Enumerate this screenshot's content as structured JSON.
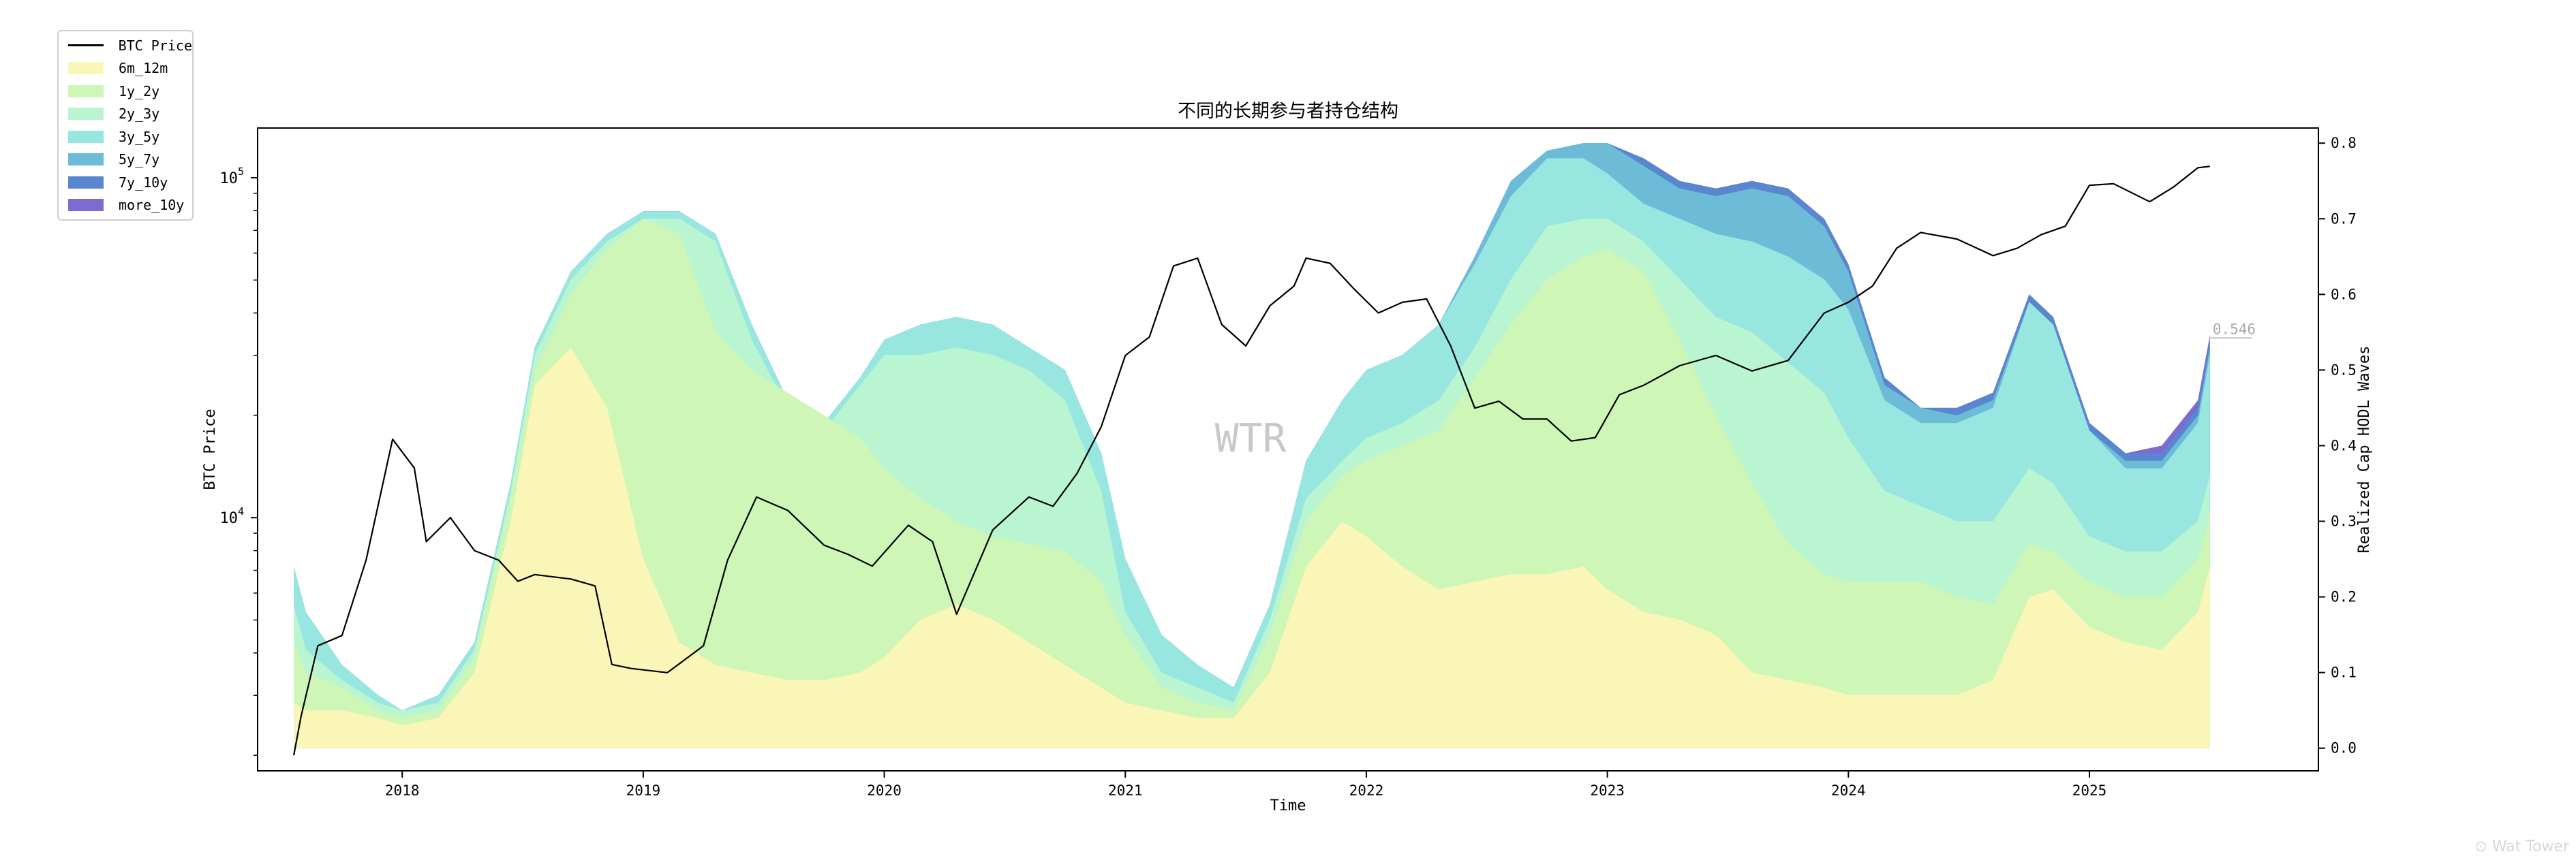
{
  "chart_data": {
    "type": "area",
    "title": "不同的长期参与者持仓结构",
    "xlabel": "Time",
    "ylabel_left": "BTC Price",
    "ylabel_right": "Realized Cap HODL Waves",
    "x_ticks": [
      "2018",
      "2019",
      "2020",
      "2021",
      "2022",
      "2023",
      "2024",
      "2025"
    ],
    "x_range": [
      2017.4,
      2025.95
    ],
    "y_left_scale": "log",
    "y_left_range": [
      1800,
      140000
    ],
    "y_left_ticks": [
      {
        "value": 10000,
        "base": "10",
        "exp": "4"
      },
      {
        "value": 100000,
        "base": "10",
        "exp": "5"
      }
    ],
    "y_right_range": [
      -0.03,
      0.82
    ],
    "y_right_ticks": [
      "0.0",
      "0.1",
      "0.2",
      "0.3",
      "0.4",
      "0.5",
      "0.6",
      "0.7",
      "0.8"
    ],
    "last_value_label": "0.546",
    "watermark": "WTR",
    "legend_position": "upper-left (outside plot)",
    "grid": false,
    "colors": {
      "price": "#000000",
      "6m_12m": "#faf6b8",
      "1y_2y": "#cdf6b7",
      "2y_3y": "#baf5d2",
      "3y_5y": "#98e6e0",
      "5y_7y": "#6cbcd8",
      "7y_10y": "#5a86cf",
      "more_10y": "#7d6bcf"
    },
    "x": [
      2017.55,
      2017.6,
      2017.75,
      2017.9,
      2018.0,
      2018.15,
      2018.3,
      2018.45,
      2018.55,
      2018.7,
      2018.85,
      2019.0,
      2019.15,
      2019.3,
      2019.45,
      2019.6,
      2019.75,
      2019.9,
      2020.0,
      2020.15,
      2020.3,
      2020.45,
      2020.6,
      2020.75,
      2020.9,
      2021.0,
      2021.15,
      2021.3,
      2021.45,
      2021.6,
      2021.75,
      2021.9,
      2022.0,
      2022.15,
      2022.3,
      2022.45,
      2022.6,
      2022.75,
      2022.9,
      2023.0,
      2023.15,
      2023.3,
      2023.45,
      2023.6,
      2023.75,
      2023.9,
      2024.0,
      2024.15,
      2024.3,
      2024.45,
      2024.6,
      2024.75,
      2024.85,
      2025.0,
      2025.15,
      2025.3,
      2025.45,
      2025.5
    ],
    "series": [
      {
        "name": "6m_12m",
        "values": [
          0.06,
          0.05,
          0.05,
          0.04,
          0.03,
          0.04,
          0.1,
          0.3,
          0.48,
          0.53,
          0.45,
          0.25,
          0.14,
          0.11,
          0.1,
          0.09,
          0.09,
          0.1,
          0.12,
          0.17,
          0.19,
          0.17,
          0.14,
          0.11,
          0.08,
          0.06,
          0.05,
          0.04,
          0.04,
          0.1,
          0.24,
          0.3,
          0.28,
          0.24,
          0.21,
          0.22,
          0.23,
          0.23,
          0.24,
          0.21,
          0.18,
          0.17,
          0.15,
          0.1,
          0.09,
          0.08,
          0.07,
          0.07,
          0.07,
          0.07,
          0.09,
          0.2,
          0.21,
          0.16,
          0.14,
          0.13,
          0.18,
          0.24
        ]
      },
      {
        "name": "1y_2y",
        "values": [
          0.14,
          0.1,
          0.08,
          0.05,
          0.04,
          0.05,
          0.12,
          0.33,
          0.5,
          0.6,
          0.66,
          0.7,
          0.68,
          0.55,
          0.5,
          0.47,
          0.44,
          0.41,
          0.37,
          0.33,
          0.3,
          0.28,
          0.27,
          0.26,
          0.22,
          0.15,
          0.08,
          0.06,
          0.05,
          0.15,
          0.3,
          0.36,
          0.38,
          0.4,
          0.42,
          0.49,
          0.56,
          0.62,
          0.65,
          0.66,
          0.63,
          0.54,
          0.44,
          0.35,
          0.27,
          0.23,
          0.22,
          0.22,
          0.22,
          0.2,
          0.19,
          0.27,
          0.26,
          0.22,
          0.2,
          0.2,
          0.25,
          0.31
        ]
      },
      {
        "name": "2y_3y",
        "values": [
          0.19,
          0.13,
          0.09,
          0.06,
          0.05,
          0.06,
          0.13,
          0.34,
          0.52,
          0.62,
          0.67,
          0.7,
          0.7,
          0.67,
          0.54,
          0.45,
          0.42,
          0.48,
          0.52,
          0.52,
          0.53,
          0.52,
          0.5,
          0.46,
          0.34,
          0.18,
          0.1,
          0.08,
          0.06,
          0.17,
          0.33,
          0.38,
          0.41,
          0.43,
          0.46,
          0.53,
          0.62,
          0.69,
          0.7,
          0.7,
          0.67,
          0.62,
          0.57,
          0.55,
          0.51,
          0.47,
          0.41,
          0.34,
          0.32,
          0.3,
          0.3,
          0.37,
          0.35,
          0.28,
          0.26,
          0.26,
          0.3,
          0.36
        ]
      },
      {
        "name": "3y_5y",
        "values": [
          0.24,
          0.18,
          0.11,
          0.07,
          0.05,
          0.07,
          0.14,
          0.35,
          0.53,
          0.63,
          0.68,
          0.71,
          0.71,
          0.68,
          0.56,
          0.46,
          0.43,
          0.49,
          0.54,
          0.56,
          0.57,
          0.56,
          0.53,
          0.5,
          0.39,
          0.25,
          0.15,
          0.11,
          0.08,
          0.19,
          0.38,
          0.46,
          0.5,
          0.52,
          0.56,
          0.64,
          0.73,
          0.78,
          0.78,
          0.76,
          0.72,
          0.7,
          0.68,
          0.67,
          0.65,
          0.62,
          0.58,
          0.46,
          0.43,
          0.43,
          0.45,
          0.59,
          0.56,
          0.42,
          0.37,
          0.37,
          0.43,
          0.52
        ]
      },
      {
        "name": "5y_7y",
        "values": [
          0.24,
          0.18,
          0.11,
          0.07,
          0.05,
          0.07,
          0.14,
          0.35,
          0.53,
          0.63,
          0.68,
          0.71,
          0.71,
          0.68,
          0.56,
          0.46,
          0.43,
          0.49,
          0.54,
          0.56,
          0.57,
          0.56,
          0.53,
          0.5,
          0.39,
          0.25,
          0.15,
          0.11,
          0.08,
          0.19,
          0.38,
          0.46,
          0.5,
          0.52,
          0.56,
          0.65,
          0.75,
          0.79,
          0.8,
          0.8,
          0.77,
          0.74,
          0.73,
          0.74,
          0.73,
          0.69,
          0.63,
          0.48,
          0.45,
          0.44,
          0.46,
          0.59,
          0.56,
          0.42,
          0.38,
          0.38,
          0.44,
          0.53
        ]
      },
      {
        "name": "7y_10y",
        "values": [
          0.24,
          0.18,
          0.11,
          0.07,
          0.05,
          0.07,
          0.14,
          0.35,
          0.53,
          0.63,
          0.68,
          0.71,
          0.71,
          0.68,
          0.56,
          0.46,
          0.43,
          0.49,
          0.54,
          0.56,
          0.57,
          0.56,
          0.53,
          0.5,
          0.39,
          0.25,
          0.15,
          0.11,
          0.08,
          0.19,
          0.38,
          0.46,
          0.5,
          0.52,
          0.56,
          0.65,
          0.75,
          0.79,
          0.8,
          0.8,
          0.78,
          0.75,
          0.74,
          0.75,
          0.74,
          0.7,
          0.64,
          0.49,
          0.45,
          0.45,
          0.47,
          0.6,
          0.57,
          0.43,
          0.39,
          0.39,
          0.45,
          0.54
        ]
      },
      {
        "name": "more_10y",
        "values": [
          0.24,
          0.18,
          0.11,
          0.07,
          0.05,
          0.07,
          0.14,
          0.35,
          0.53,
          0.63,
          0.68,
          0.71,
          0.71,
          0.68,
          0.56,
          0.46,
          0.43,
          0.49,
          0.54,
          0.56,
          0.57,
          0.56,
          0.53,
          0.5,
          0.39,
          0.25,
          0.15,
          0.11,
          0.08,
          0.19,
          0.38,
          0.46,
          0.5,
          0.52,
          0.56,
          0.65,
          0.75,
          0.79,
          0.8,
          0.8,
          0.78,
          0.75,
          0.74,
          0.75,
          0.74,
          0.7,
          0.64,
          0.49,
          0.45,
          0.45,
          0.47,
          0.6,
          0.57,
          0.43,
          0.39,
          0.4,
          0.46,
          0.546
        ]
      }
    ],
    "price": {
      "name": "BTC Price",
      "x": [
        2017.55,
        2017.58,
        2017.65,
        2017.75,
        2017.85,
        2017.96,
        2018.05,
        2018.1,
        2018.2,
        2018.3,
        2018.4,
        2018.48,
        2018.55,
        2018.7,
        2018.8,
        2018.87,
        2018.95,
        2019.1,
        2019.25,
        2019.35,
        2019.47,
        2019.6,
        2019.75,
        2019.85,
        2019.95,
        2020.1,
        2020.2,
        2020.3,
        2020.45,
        2020.6,
        2020.7,
        2020.8,
        2020.9,
        2021.0,
        2021.1,
        2021.2,
        2021.3,
        2021.4,
        2021.5,
        2021.6,
        2021.7,
        2021.75,
        2021.85,
        2021.95,
        2022.05,
        2022.15,
        2022.25,
        2022.35,
        2022.45,
        2022.55,
        2022.65,
        2022.75,
        2022.85,
        2022.95,
        2023.05,
        2023.15,
        2023.3,
        2023.45,
        2023.6,
        2023.75,
        2023.9,
        2024.0,
        2024.1,
        2024.2,
        2024.3,
        2024.45,
        2024.6,
        2024.7,
        2024.8,
        2024.9,
        2025.0,
        2025.1,
        2025.25,
        2025.35,
        2025.45,
        2025.5
      ],
      "values": [
        2000,
        2600,
        4200,
        4500,
        7500,
        17000,
        14000,
        8500,
        10000,
        8000,
        7500,
        6500,
        6800,
        6600,
        6300,
        3700,
        3600,
        3500,
        4200,
        7500,
        11500,
        10500,
        8300,
        7800,
        7200,
        9500,
        8500,
        5200,
        9200,
        11500,
        10800,
        13500,
        18500,
        30000,
        34000,
        55000,
        58000,
        37000,
        32000,
        42000,
        48000,
        58000,
        56000,
        47000,
        40000,
        43000,
        44000,
        32000,
        21000,
        22000,
        19500,
        19500,
        16800,
        17200,
        23000,
        24500,
        28000,
        30000,
        27000,
        29000,
        40000,
        43000,
        48000,
        62000,
        69000,
        66000,
        59000,
        62000,
        68000,
        72000,
        95000,
        96000,
        85000,
        94000,
        107000,
        108000
      ]
    }
  }
}
